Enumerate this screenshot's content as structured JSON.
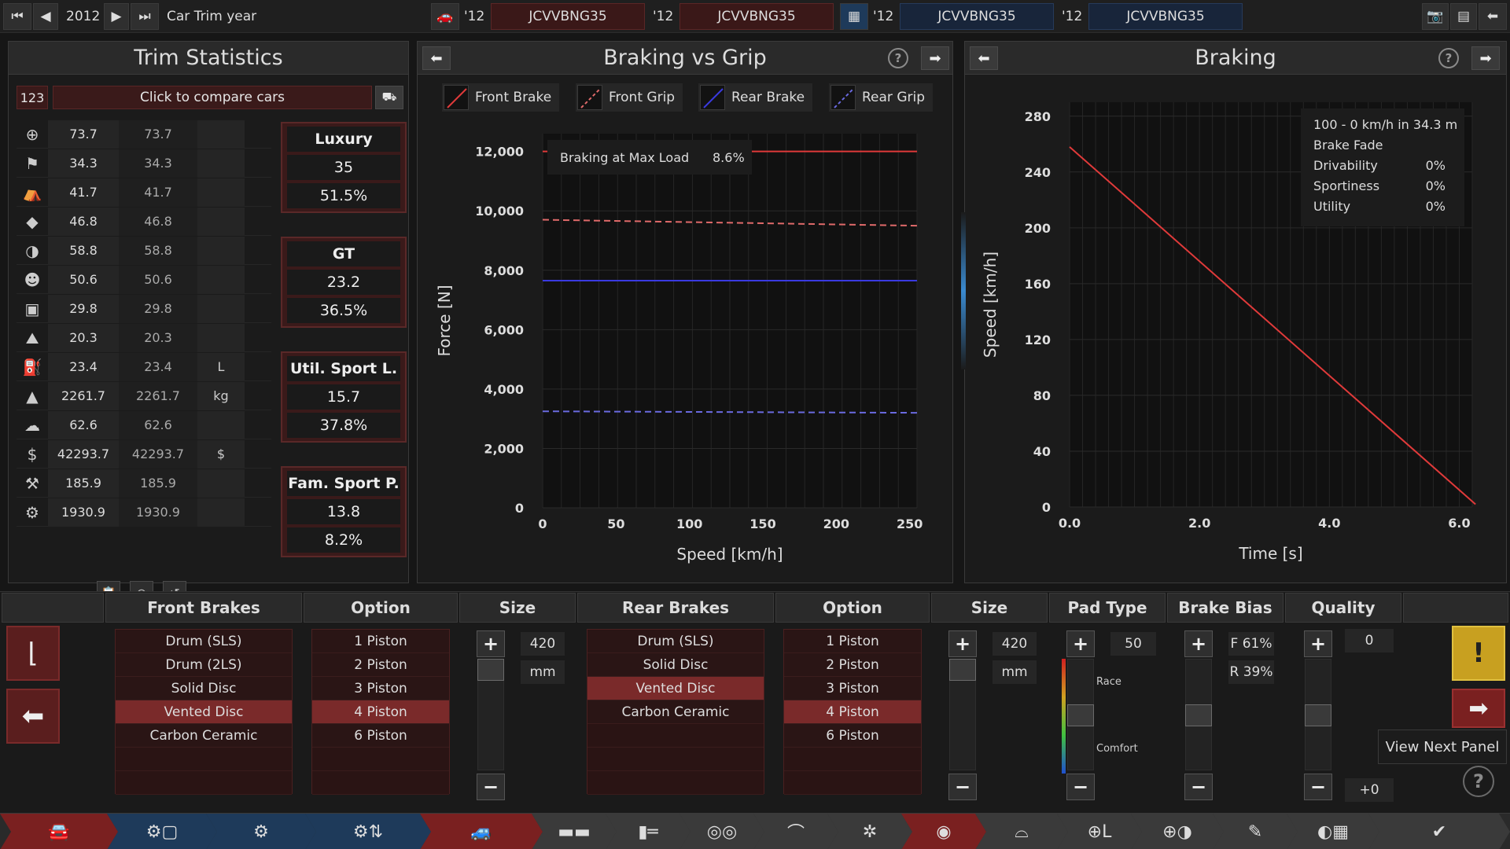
{
  "colors": {
    "red_accent": "#7a2a2a",
    "blue_accent": "#1e3a5a",
    "front_brake": "#e03a3a",
    "front_grip": "#e06a6a",
    "rear_brake": "#3a3ae0",
    "rear_grip": "#6a6ae0"
  },
  "topbar": {
    "year": "2012",
    "label": "Car Trim year",
    "trims": [
      {
        "year": "'12",
        "name": "JCVVBNG35"
      },
      {
        "year": "'12",
        "name": "JCVVBNG35"
      },
      {
        "year": "'12",
        "name": "JCVVBNG35"
      },
      {
        "year": "'12",
        "name": "JCVVBNG35"
      }
    ]
  },
  "stats_panel": {
    "title": "Trim Statistics",
    "compare_count": "123",
    "compare_label": "Click to compare cars",
    "rows": [
      {
        "icon": "steering-wheel-icon",
        "v1": "73.7",
        "v2": "73.7",
        "unit": ""
      },
      {
        "icon": "race-flag-icon",
        "v1": "34.3",
        "v2": "34.3",
        "unit": ""
      },
      {
        "icon": "seat-icon",
        "v1": "41.7",
        "v2": "41.7",
        "unit": ""
      },
      {
        "icon": "diamond-icon",
        "v1": "46.8",
        "v2": "46.8",
        "unit": ""
      },
      {
        "icon": "safety-icon",
        "v1": "58.8",
        "v2": "58.8",
        "unit": ""
      },
      {
        "icon": "passengers-icon",
        "v1": "50.6",
        "v2": "50.6",
        "unit": ""
      },
      {
        "icon": "cargo-icon",
        "v1": "29.8",
        "v2": "29.8",
        "unit": ""
      },
      {
        "icon": "offroad-icon",
        "v1": "20.3",
        "v2": "20.3",
        "unit": ""
      },
      {
        "icon": "fuel-icon",
        "v1": "23.4",
        "v2": "23.4",
        "unit": "L"
      },
      {
        "icon": "weight-icon",
        "v1": "2261.7",
        "v2": "2261.7",
        "unit": "kg"
      },
      {
        "icon": "emissions-icon",
        "v1": "62.6",
        "v2": "62.6",
        "unit": ""
      },
      {
        "icon": "cost-icon",
        "v1": "42293.7",
        "v2": "42293.7",
        "unit": "$"
      },
      {
        "icon": "service-icon",
        "v1": "185.9",
        "v2": "185.9",
        "unit": ""
      },
      {
        "icon": "production-icon",
        "v1": "1930.9",
        "v2": "1930.9",
        "unit": ""
      }
    ],
    "scores": [
      {
        "name": "Luxury",
        "value": "35",
        "percent": "51.5%"
      },
      {
        "name": "GT",
        "value": "23.2",
        "percent": "36.5%"
      },
      {
        "name": "Util. Sport L.",
        "value": "15.7",
        "percent": "37.8%"
      },
      {
        "name": "Fam. Sport P.",
        "value": "13.8",
        "percent": "8.2%"
      }
    ]
  },
  "grip_panel": {
    "title": "Braking vs Grip",
    "legend": [
      "Front Brake",
      "Front Grip",
      "Rear Brake",
      "Rear Grip"
    ],
    "info_label": "Braking at Max Load",
    "info_value": "8.6%"
  },
  "braking_panel": {
    "title": "Braking",
    "info": [
      {
        "label": "100 - 0 km/h in 34.3 m",
        "value": ""
      },
      {
        "label": "Brake Fade",
        "value": ""
      },
      {
        "label": "Drivability",
        "value": "0%"
      },
      {
        "label": "Sportiness",
        "value": "0%"
      },
      {
        "label": "Utility",
        "value": "0%"
      }
    ]
  },
  "chart_data": [
    {
      "type": "line",
      "title": "Braking vs Grip",
      "xlabel": "Speed [km/h]",
      "ylabel": "Force [N]",
      "xlim": [
        0,
        255
      ],
      "ylim": [
        0,
        12600
      ],
      "xticks": [
        "0",
        "50",
        "100",
        "150",
        "200",
        "250"
      ],
      "yticks": [
        "0",
        "2,000",
        "4,000",
        "6,000",
        "8,000",
        "10,000",
        "12,000"
      ],
      "grid": true,
      "series": [
        {
          "name": "Front Brake",
          "x": [
            0,
            255
          ],
          "values": [
            12000,
            12000
          ],
          "color": "#e03a3a",
          "dash": false
        },
        {
          "name": "Front Grip",
          "x": [
            0,
            255
          ],
          "values": [
            9700,
            9500
          ],
          "color": "#e06a6a",
          "dash": true
        },
        {
          "name": "Rear Brake",
          "x": [
            0,
            255
          ],
          "values": [
            7650,
            7650
          ],
          "color": "#3a3ae0",
          "dash": false
        },
        {
          "name": "Rear Grip",
          "x": [
            0,
            255
          ],
          "values": [
            3250,
            3200
          ],
          "color": "#6a6ae0",
          "dash": true
        }
      ]
    },
    {
      "type": "line",
      "title": "Braking",
      "xlabel": "Time [s]",
      "ylabel": "Speed [km/h]",
      "xlim": [
        0,
        6.2
      ],
      "ylim": [
        0,
        290
      ],
      "xticks": [
        "0.0",
        "2.0",
        "4.0",
        "6.0"
      ],
      "yticks": [
        "0",
        "40",
        "80",
        "120",
        "160",
        "200",
        "240",
        "280"
      ],
      "grid": true,
      "series": [
        {
          "name": "",
          "x": [
            0,
            6.25
          ],
          "values": [
            258,
            2
          ],
          "color": "#e03a3a",
          "dash": false
        }
      ]
    }
  ],
  "bottom": {
    "headers": {
      "front": "Front Brakes",
      "option1": "Option",
      "size1": "Size",
      "rear": "Rear Brakes",
      "option2": "Option",
      "size2": "Size",
      "pad": "Pad Type",
      "bias": "Brake Bias",
      "quality": "Quality"
    },
    "front_types": [
      "Drum (SLS)",
      "Drum (2LS)",
      "Solid Disc",
      "Vented Disc",
      "Carbon Ceramic"
    ],
    "front_selected": 3,
    "front_options": [
      "1 Piston",
      "2 Piston",
      "3 Piston",
      "4 Piston",
      "6 Piston"
    ],
    "front_option_selected": 3,
    "rear_types": [
      "Drum (SLS)",
      "Solid Disc",
      "Vented Disc",
      "Carbon Ceramic"
    ],
    "rear_selected": 2,
    "rear_options": [
      "1 Piston",
      "2 Piston",
      "3 Piston",
      "4 Piston",
      "6 Piston"
    ],
    "rear_option_selected": 3,
    "front_size": "420",
    "front_unit": "mm",
    "rear_size": "420",
    "rear_unit": "mm",
    "pad_value": "50",
    "pad_race": "Race",
    "pad_comfort": "Comfort",
    "bias_front": "F 61%",
    "bias_rear": "R 39%",
    "quality_value": "0",
    "quality_delta": "+0",
    "tooltip": "View Next Panel"
  }
}
